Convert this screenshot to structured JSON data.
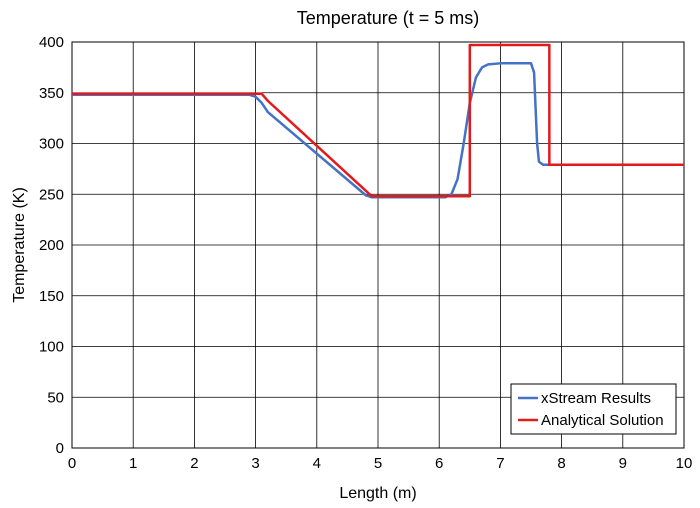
{
  "chart_data": {
    "type": "line",
    "title": "Temperature (t = 5 ms)",
    "xlabel": "Length (m)",
    "ylabel": "Temperature (K)",
    "xlim": [
      0,
      10
    ],
    "ylim": [
      0,
      400
    ],
    "xticks": [
      0,
      1,
      2,
      3,
      4,
      5,
      6,
      7,
      8,
      9,
      10
    ],
    "yticks": [
      0,
      50,
      100,
      150,
      200,
      250,
      300,
      350,
      400
    ],
    "grid": true,
    "legend_position": "bottom-right",
    "series": [
      {
        "name": "xStream Results",
        "color": "#4472C4",
        "points": [
          [
            0,
            348
          ],
          [
            2.9,
            348
          ],
          [
            3.0,
            346
          ],
          [
            3.1,
            340
          ],
          [
            3.2,
            331
          ],
          [
            4.8,
            249
          ],
          [
            4.9,
            247
          ],
          [
            5.0,
            247
          ],
          [
            6.1,
            247
          ],
          [
            6.2,
            250
          ],
          [
            6.3,
            265
          ],
          [
            6.4,
            300
          ],
          [
            6.5,
            340
          ],
          [
            6.6,
            365
          ],
          [
            6.7,
            375
          ],
          [
            6.8,
            378
          ],
          [
            7.0,
            379
          ],
          [
            7.5,
            379
          ],
          [
            7.55,
            370
          ],
          [
            7.6,
            300
          ],
          [
            7.63,
            282
          ],
          [
            7.7,
            279
          ],
          [
            10,
            279
          ]
        ]
      },
      {
        "name": "Analytical Solution",
        "color": "#E31A1C",
        "points": [
          [
            0,
            349
          ],
          [
            3.1,
            349
          ],
          [
            3.2,
            342
          ],
          [
            4.9,
            248
          ],
          [
            6.5,
            248
          ],
          [
            6.5,
            397
          ],
          [
            7.8,
            397
          ],
          [
            7.8,
            279
          ],
          [
            10,
            279
          ]
        ]
      }
    ]
  }
}
